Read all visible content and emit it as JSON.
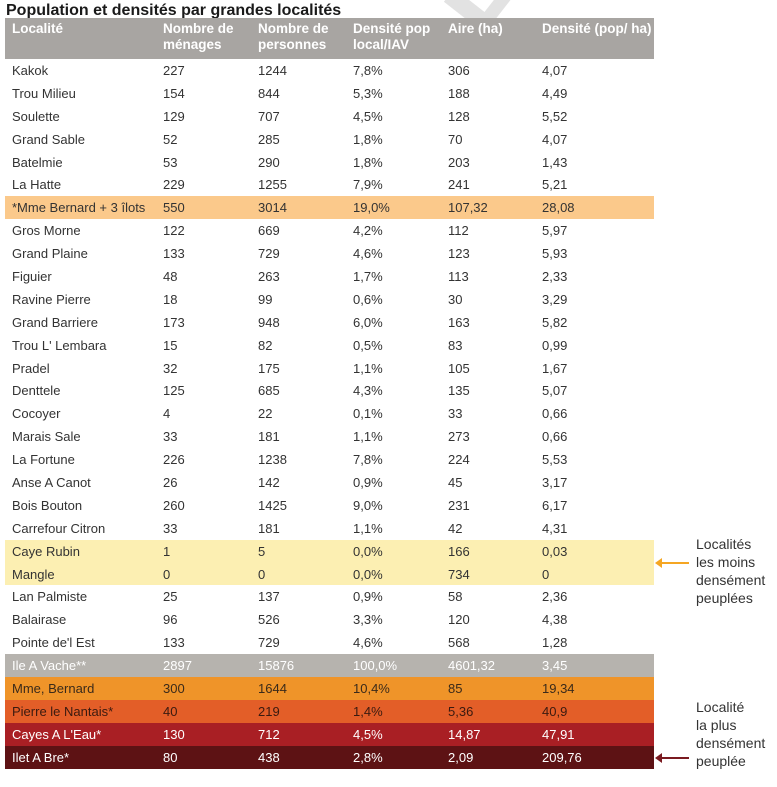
{
  "title": "Population et densités par grandes localités",
  "watermark": "AL DRAFT",
  "columns": [
    "Localité",
    "Nombre de ménages",
    "Nombre de personnes",
    "Densité pop local/IAV",
    "Aire (ha)",
    "Densité (pop/ ha)"
  ],
  "rows": [
    {
      "cells": [
        "Kakok",
        "227",
        "1244",
        "7,8%",
        "306",
        "4,07"
      ],
      "bg": "#ffffff",
      "fg": "#333333"
    },
    {
      "cells": [
        "Trou Milieu",
        "154",
        "844",
        "5,3%",
        "188",
        "4,49"
      ],
      "bg": "#ffffff",
      "fg": "#333333"
    },
    {
      "cells": [
        "Soulette",
        "129",
        "707",
        "4,5%",
        "128",
        "5,52"
      ],
      "bg": "#ffffff",
      "fg": "#333333"
    },
    {
      "cells": [
        "Grand Sable",
        "52",
        "285",
        "1,8%",
        "70",
        "4,07"
      ],
      "bg": "#ffffff",
      "fg": "#333333"
    },
    {
      "cells": [
        "Batelmie",
        "53",
        "290",
        "1,8%",
        "203",
        "1,43"
      ],
      "bg": "#ffffff",
      "fg": "#333333"
    },
    {
      "cells": [
        "La Hatte",
        "229",
        "1255",
        "7,9%",
        "241",
        "5,21"
      ],
      "bg": "#ffffff",
      "fg": "#333333"
    },
    {
      "cells": [
        "*Mme Bernard + 3 îlots",
        "550",
        "3014",
        "19,0%",
        "107,32",
        "28,08"
      ],
      "bg": "#fbc98b",
      "fg": "#333333"
    },
    {
      "cells": [
        "Gros Morne",
        "122",
        "669",
        "4,2%",
        "112",
        "5,97"
      ],
      "bg": "#ffffff",
      "fg": "#333333"
    },
    {
      "cells": [
        "Grand Plaine",
        "133",
        "729",
        "4,6%",
        "123",
        "5,93"
      ],
      "bg": "#ffffff",
      "fg": "#333333"
    },
    {
      "cells": [
        "Figuier",
        "48",
        "263",
        "1,7%",
        "113",
        "2,33"
      ],
      "bg": "#ffffff",
      "fg": "#333333"
    },
    {
      "cells": [
        "Ravine Pierre",
        "18",
        "99",
        "0,6%",
        "30",
        "3,29"
      ],
      "bg": "#ffffff",
      "fg": "#333333"
    },
    {
      "cells": [
        "Grand Barriere",
        "173",
        "948",
        "6,0%",
        "163",
        "5,82"
      ],
      "bg": "#ffffff",
      "fg": "#333333"
    },
    {
      "cells": [
        "Trou L' Lembara",
        "15",
        "82",
        "0,5%",
        "83",
        "0,99"
      ],
      "bg": "#ffffff",
      "fg": "#333333"
    },
    {
      "cells": [
        "Pradel",
        "32",
        "175",
        "1,1%",
        "105",
        "1,67"
      ],
      "bg": "#ffffff",
      "fg": "#333333"
    },
    {
      "cells": [
        "Denttele",
        "125",
        "685",
        "4,3%",
        "135",
        "5,07"
      ],
      "bg": "#ffffff",
      "fg": "#333333"
    },
    {
      "cells": [
        "Cocoyer",
        "4",
        "22",
        "0,1%",
        "33",
        "0,66"
      ],
      "bg": "#ffffff",
      "fg": "#333333"
    },
    {
      "cells": [
        "Marais Sale",
        "33",
        "181",
        "1,1%",
        "273",
        "0,66"
      ],
      "bg": "#ffffff",
      "fg": "#333333"
    },
    {
      "cells": [
        "La Fortune",
        "226",
        "1238",
        "7,8%",
        "224",
        "5,53"
      ],
      "bg": "#ffffff",
      "fg": "#333333"
    },
    {
      "cells": [
        "Anse A Canot",
        "26",
        "142",
        "0,9%",
        "45",
        "3,17"
      ],
      "bg": "#ffffff",
      "fg": "#333333"
    },
    {
      "cells": [
        "Bois Bouton",
        "260",
        "1425",
        "9,0%",
        "231",
        "6,17"
      ],
      "bg": "#ffffff",
      "fg": "#333333"
    },
    {
      "cells": [
        "Carrefour Citron",
        "33",
        "181",
        "1,1%",
        "42",
        "4,31"
      ],
      "bg": "#ffffff",
      "fg": "#333333"
    },
    {
      "cells": [
        "Caye Rubin",
        "1",
        "5",
        "0,0%",
        "166",
        "0,03"
      ],
      "bg": "#fcefb2",
      "fg": "#333333"
    },
    {
      "cells": [
        "Mangle",
        "0",
        "0",
        "0,0%",
        "734",
        "0"
      ],
      "bg": "#fcefb2",
      "fg": "#333333"
    },
    {
      "cells": [
        "Lan Palmiste",
        "25",
        "137",
        "0,9%",
        "58",
        "2,36"
      ],
      "bg": "#ffffff",
      "fg": "#333333"
    },
    {
      "cells": [
        "Balairase",
        "96",
        "526",
        "3,3%",
        "120",
        "4,38"
      ],
      "bg": "#ffffff",
      "fg": "#333333"
    },
    {
      "cells": [
        "Pointe de'l Est",
        "133",
        "729",
        "4,6%",
        "568",
        "1,28"
      ],
      "bg": "#ffffff",
      "fg": "#333333"
    },
    {
      "cells": [
        "Ile A Vache**",
        "2897",
        "15876",
        "100,0%",
        "4601,32",
        "3,45"
      ],
      "bg": "#b6b3ae",
      "fg": "#ffffff"
    },
    {
      "cells": [
        "Mme, Bernard",
        "300",
        "1644",
        "10,4%",
        "85",
        "19,34"
      ],
      "bg": "#ef9429",
      "fg": "#3a2a1a"
    },
    {
      "cells": [
        "Pierre le Nantais*",
        "40",
        "219",
        "1,4%",
        "5,36",
        "40,9"
      ],
      "bg": "#e35e28",
      "fg": "#3a1a10"
    },
    {
      "cells": [
        "Cayes A L'Eau*",
        "130",
        "712",
        "4,5%",
        "14,87",
        "47,91"
      ],
      "bg": "#a91f24",
      "fg": "#ffffff"
    },
    {
      "cells": [
        "Ilet A Bre*",
        "80",
        "438",
        "2,8%",
        "2,09",
        "209,76"
      ],
      "bg": "#5d1214",
      "fg": "#ffffff"
    }
  ],
  "annotations": {
    "least_dense": {
      "lines": [
        "Localités",
        "les moins",
        "densément",
        "peuplées"
      ],
      "arrow_color": "#f5a623"
    },
    "most_dense": {
      "lines": [
        "Localité",
        "la plus",
        "densément",
        "peuplée"
      ],
      "arrow_color": "#7a1a20"
    }
  }
}
